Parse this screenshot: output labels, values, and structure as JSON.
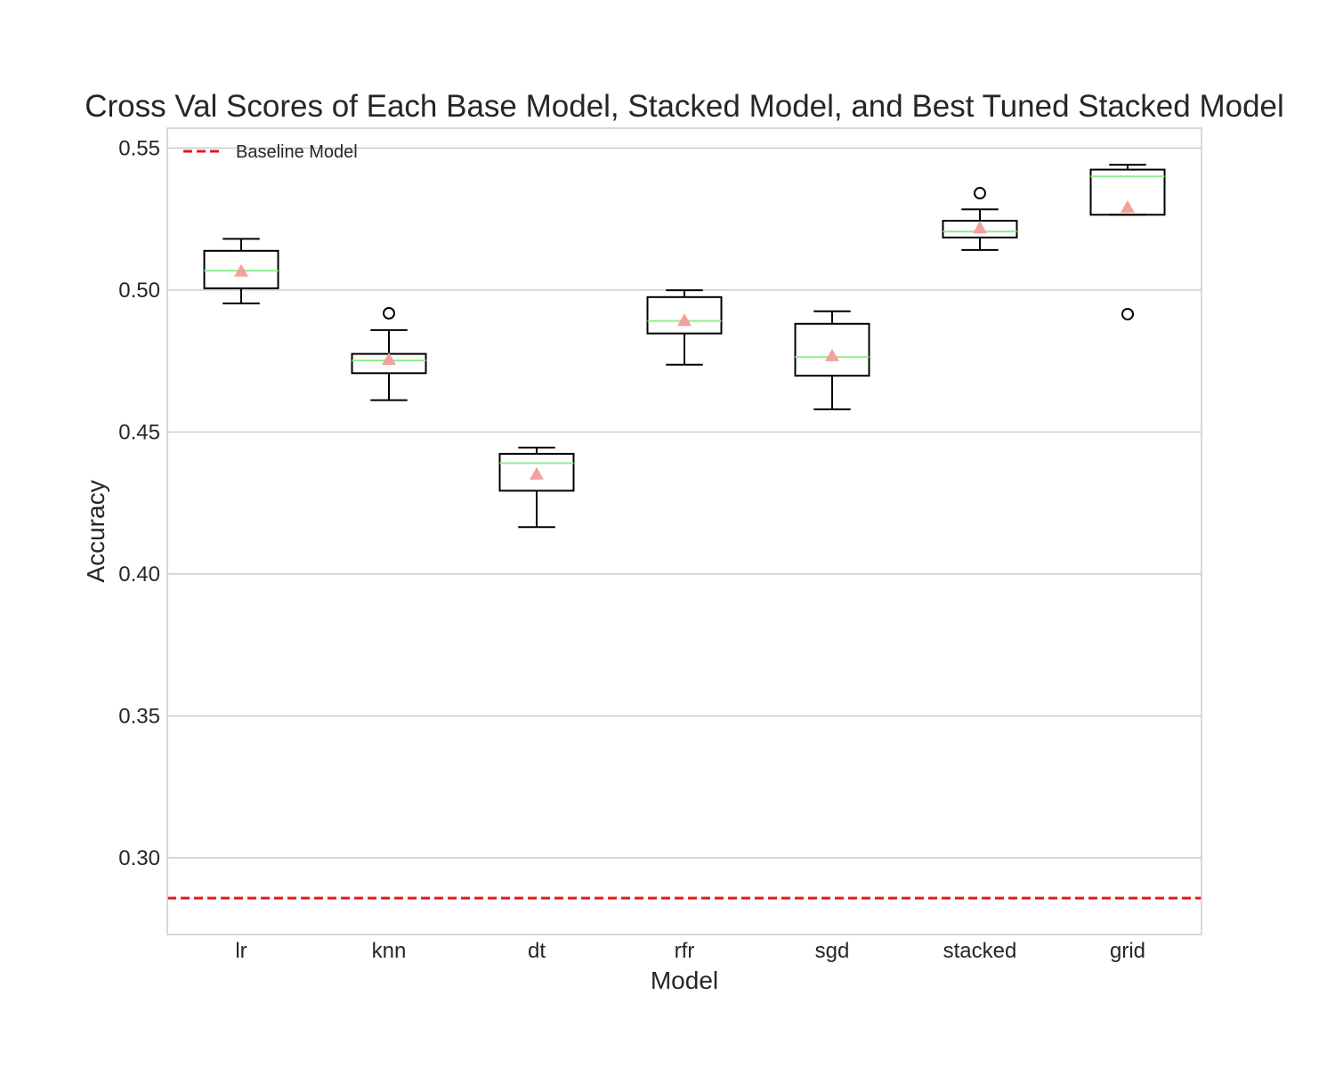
{
  "chart_data": {
    "type": "box",
    "title": "Cross Val Scores of Each Base Model, Stacked Model, and Best Tuned Stacked Model",
    "xlabel": "Model",
    "ylabel": "Accuracy",
    "ylim": [
      0.273,
      0.557
    ],
    "yticks": [
      "0.30",
      "0.35",
      "0.40",
      "0.45",
      "0.50",
      "0.55"
    ],
    "grid": "horizontal",
    "legend": {
      "placement": "top-left",
      "entries": [
        "Baseline Model"
      ]
    },
    "baseline": {
      "name": "Baseline Model",
      "value": 0.2858,
      "color": "#e41a1c",
      "style": "dashed"
    },
    "colors": {
      "box": "#000000",
      "median": "#90ee90",
      "mean": "#f4a09c",
      "grid": "#cccccc",
      "frame": "#cccccc"
    },
    "categories": [
      "lr",
      "knn",
      "dt",
      "rfr",
      "sgd",
      "stacked",
      "grid"
    ],
    "boxes": [
      {
        "category": "lr",
        "whislo": 0.4953,
        "q1": 0.5006,
        "median": 0.5068,
        "q3": 0.5138,
        "whishi": 0.518,
        "mean": 0.5066,
        "fliers": []
      },
      {
        "category": "knn",
        "whislo": 0.4612,
        "q1": 0.4707,
        "median": 0.4752,
        "q3": 0.4775,
        "whishi": 0.4859,
        "mean": 0.4755,
        "fliers": [
          0.4918
        ]
      },
      {
        "category": "dt",
        "whislo": 0.4165,
        "q1": 0.4293,
        "median": 0.439,
        "q3": 0.4423,
        "whishi": 0.4445,
        "mean": 0.4351,
        "fliers": []
      },
      {
        "category": "rfr",
        "whislo": 0.4737,
        "q1": 0.4847,
        "median": 0.4891,
        "q3": 0.4975,
        "whishi": 0.4999,
        "mean": 0.4892,
        "fliers": []
      },
      {
        "category": "sgd",
        "whislo": 0.458,
        "q1": 0.4698,
        "median": 0.4764,
        "q3": 0.4881,
        "whishi": 0.4925,
        "mean": 0.4768,
        "fliers": []
      },
      {
        "category": "stacked",
        "whislo": 0.5141,
        "q1": 0.5185,
        "median": 0.5206,
        "q3": 0.5244,
        "whishi": 0.5284,
        "mean": 0.5218,
        "fliers": [
          0.5341
        ]
      },
      {
        "category": "grid",
        "whislo": 0.5265,
        "q1": 0.5265,
        "median": 0.54,
        "q3": 0.5424,
        "whishi": 0.5441,
        "mean": 0.5291,
        "fliers": [
          0.4915
        ]
      }
    ]
  }
}
